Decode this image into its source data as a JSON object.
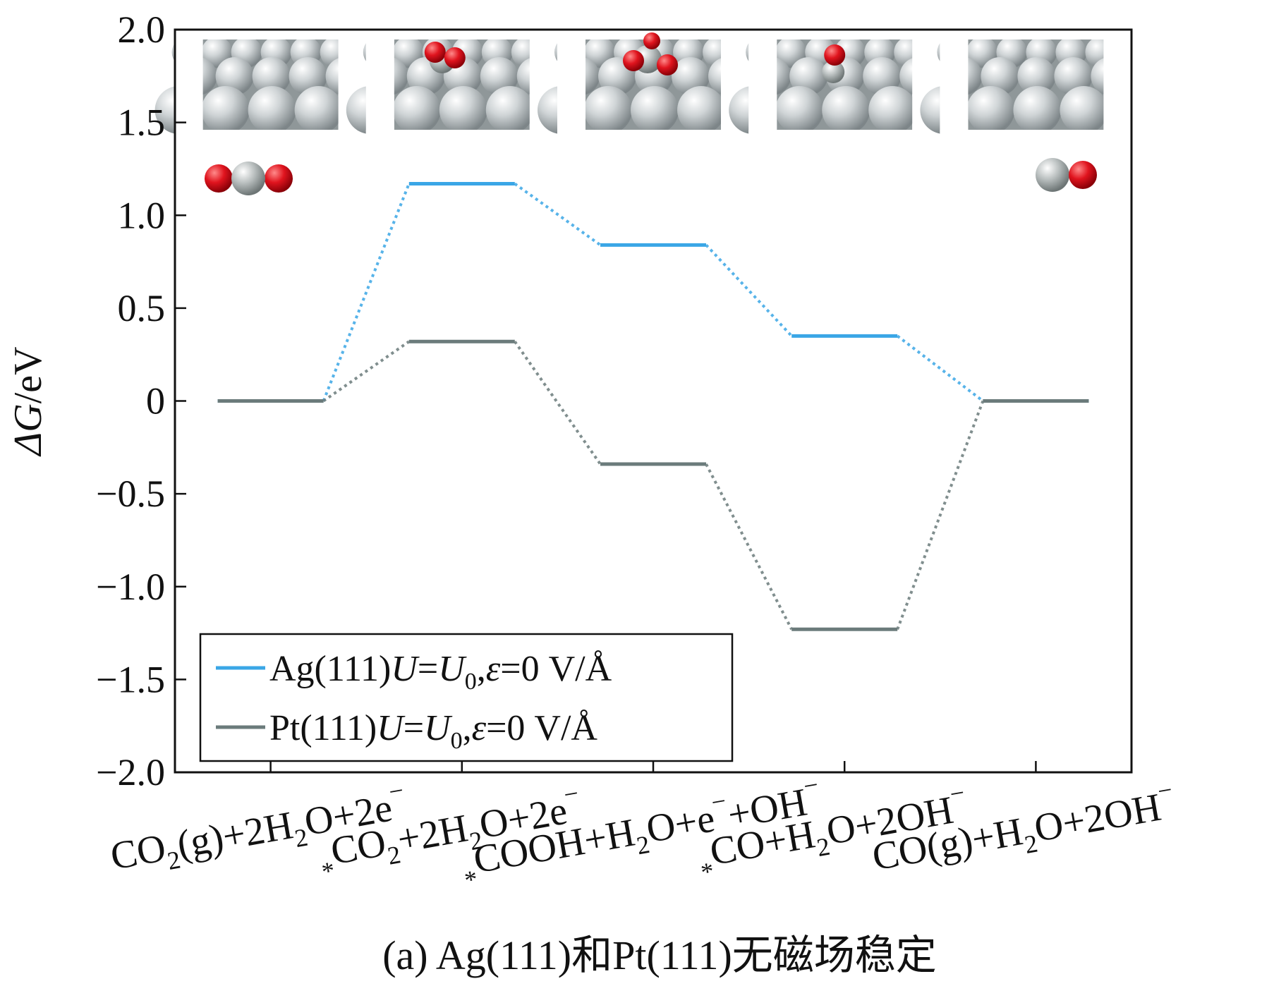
{
  "chart_data": {
    "type": "line",
    "title": "",
    "caption": "(a) Ag(111)和Pt(111)无磁场稳定",
    "ylabel_sym": "ΔG",
    "ylabel_unit": "/eV",
    "ylim": [
      -2.0,
      2.0
    ],
    "yticks": [
      2.0,
      1.5,
      1.0,
      0.5,
      0,
      -0.5,
      -1.0,
      -1.5,
      -2.0
    ],
    "ytick_labels": [
      "2.0",
      "1.5",
      "1.0",
      "0.5",
      "0",
      "−0.5",
      "−1.0",
      "−1.5",
      "−2.0"
    ],
    "categories": [
      {
        "label": [
          [
            "CO",
            "n"
          ],
          [
            "2",
            "sub"
          ],
          [
            "(g)+2H",
            "n"
          ],
          [
            "2",
            "sub"
          ],
          [
            "O+2e",
            "n"
          ],
          [
            "−",
            "sup"
          ]
        ]
      },
      {
        "label": [
          [
            "*",
            "pre"
          ],
          [
            "CO",
            "n"
          ],
          [
            "2",
            "sub"
          ],
          [
            "+2H",
            "n"
          ],
          [
            "2",
            "sub"
          ],
          [
            "O+2e",
            "n"
          ],
          [
            "−",
            "sup"
          ]
        ]
      },
      {
        "label": [
          [
            "*",
            "pre"
          ],
          [
            "COOH+H",
            "n"
          ],
          [
            "2",
            "sub"
          ],
          [
            "O+e",
            "n"
          ],
          [
            "−",
            "sup"
          ],
          [
            "+OH",
            "n"
          ],
          [
            "−",
            "sup"
          ]
        ]
      },
      {
        "label": [
          [
            "*",
            "pre"
          ],
          [
            "CO+H",
            "n"
          ],
          [
            "2",
            "sub"
          ],
          [
            "O+2OH",
            "n"
          ],
          [
            "−",
            "sup"
          ]
        ]
      },
      {
        "label": [
          [
            "CO(g)+H",
            "n"
          ],
          [
            "2",
            "sub"
          ],
          [
            "O+2OH",
            "n"
          ],
          [
            "−",
            "sup"
          ]
        ]
      }
    ],
    "series": [
      {
        "name_parts": [
          "Ag(111)",
          "U",
          "=",
          "U",
          "0",
          ",",
          "ε",
          "=0 V/Å"
        ],
        "color": "#3aa6e6",
        "values": [
          0,
          1.17,
          0.84,
          0.35,
          0
        ]
      },
      {
        "name_parts": [
          "Pt(111)",
          "U",
          "=",
          "U",
          "0",
          ",",
          "ε",
          "=0 V/Å"
        ],
        "color": "#6b7b7b",
        "values": [
          0,
          0.32,
          -0.34,
          -1.23,
          0
        ]
      }
    ],
    "legend_position": "bottom-left",
    "grid": false
  },
  "colors": {
    "ag": "#3aa6e6",
    "pt": "#6b7b7b",
    "oxygen": "#e0141e",
    "carbon": "#b7bdbd",
    "slab": "#c9cdcf"
  },
  "insets": {
    "slabs": [
      "clean-slab",
      "co2-adsorbed-slab",
      "cooh-adsorbed-slab",
      "co-adsorbed-slab",
      "clean-slab"
    ],
    "molecules": [
      "co2-molecule",
      "co-molecule"
    ]
  }
}
